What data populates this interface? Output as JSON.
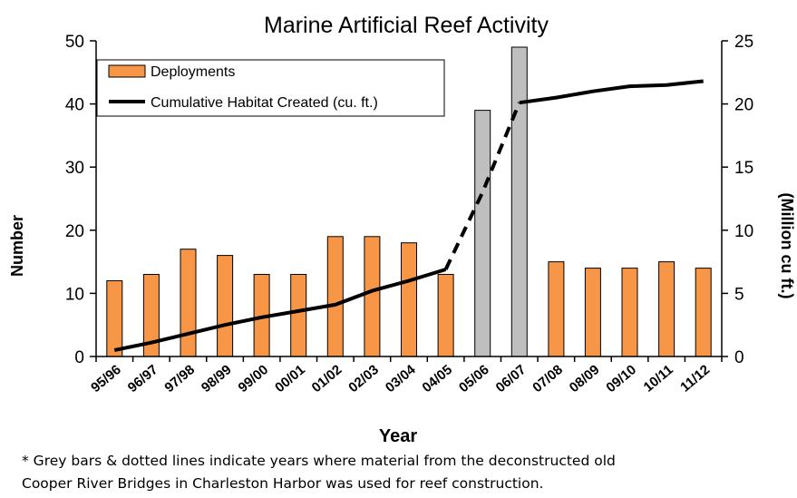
{
  "chart_data": {
    "type": "bar",
    "title": "Marine Artificial Reef Activity",
    "xlabel": "Year",
    "ylabel": "Number",
    "y2label": "(Million cu ft.)",
    "categories": [
      "95/96",
      "96/97",
      "97/98",
      "98/99",
      "99/00",
      "00/01",
      "01/02",
      "02/03",
      "03/04",
      "04/05",
      "05/06",
      "06/07",
      "07/08",
      "08/09",
      "09/10",
      "10/11",
      "11/12"
    ],
    "ylim": [
      0,
      50
    ],
    "y2lim": [
      0,
      25
    ],
    "yticks": [
      0,
      10,
      20,
      30,
      40,
      50
    ],
    "y2ticks": [
      0,
      5,
      10,
      15,
      20,
      25
    ],
    "series": [
      {
        "name": "Deployments",
        "type": "bar",
        "axis": "left",
        "color": "#F79646",
        "values": [
          12,
          13,
          17,
          16,
          13,
          13,
          19,
          19,
          18,
          13,
          39,
          49,
          15,
          14,
          14,
          15,
          14
        ],
        "grey_categories": [
          "05/06",
          "06/07"
        ],
        "grey_color": "#BFBFBF"
      },
      {
        "name": "Cumulative Habitat Created (cu. ft.)",
        "type": "line",
        "axis": "right",
        "color": "#000000",
        "values": [
          0.5,
          1.1,
          1.8,
          2.5,
          3.1,
          3.6,
          4.1,
          5.2,
          6.0,
          6.9,
          13.0,
          20.1,
          20.5,
          21.0,
          21.4,
          21.5,
          21.8
        ],
        "dashed_categories": [
          "04/05",
          "05/06",
          "06/07"
        ]
      }
    ],
    "legend": "top-left",
    "grid": false
  },
  "footnote": {
    "line1": "* Grey bars & dotted lines indicate years where material from the deconstructed old",
    "line2": "Cooper River  Bridges in Charleston Harbor was used for reef construction."
  }
}
